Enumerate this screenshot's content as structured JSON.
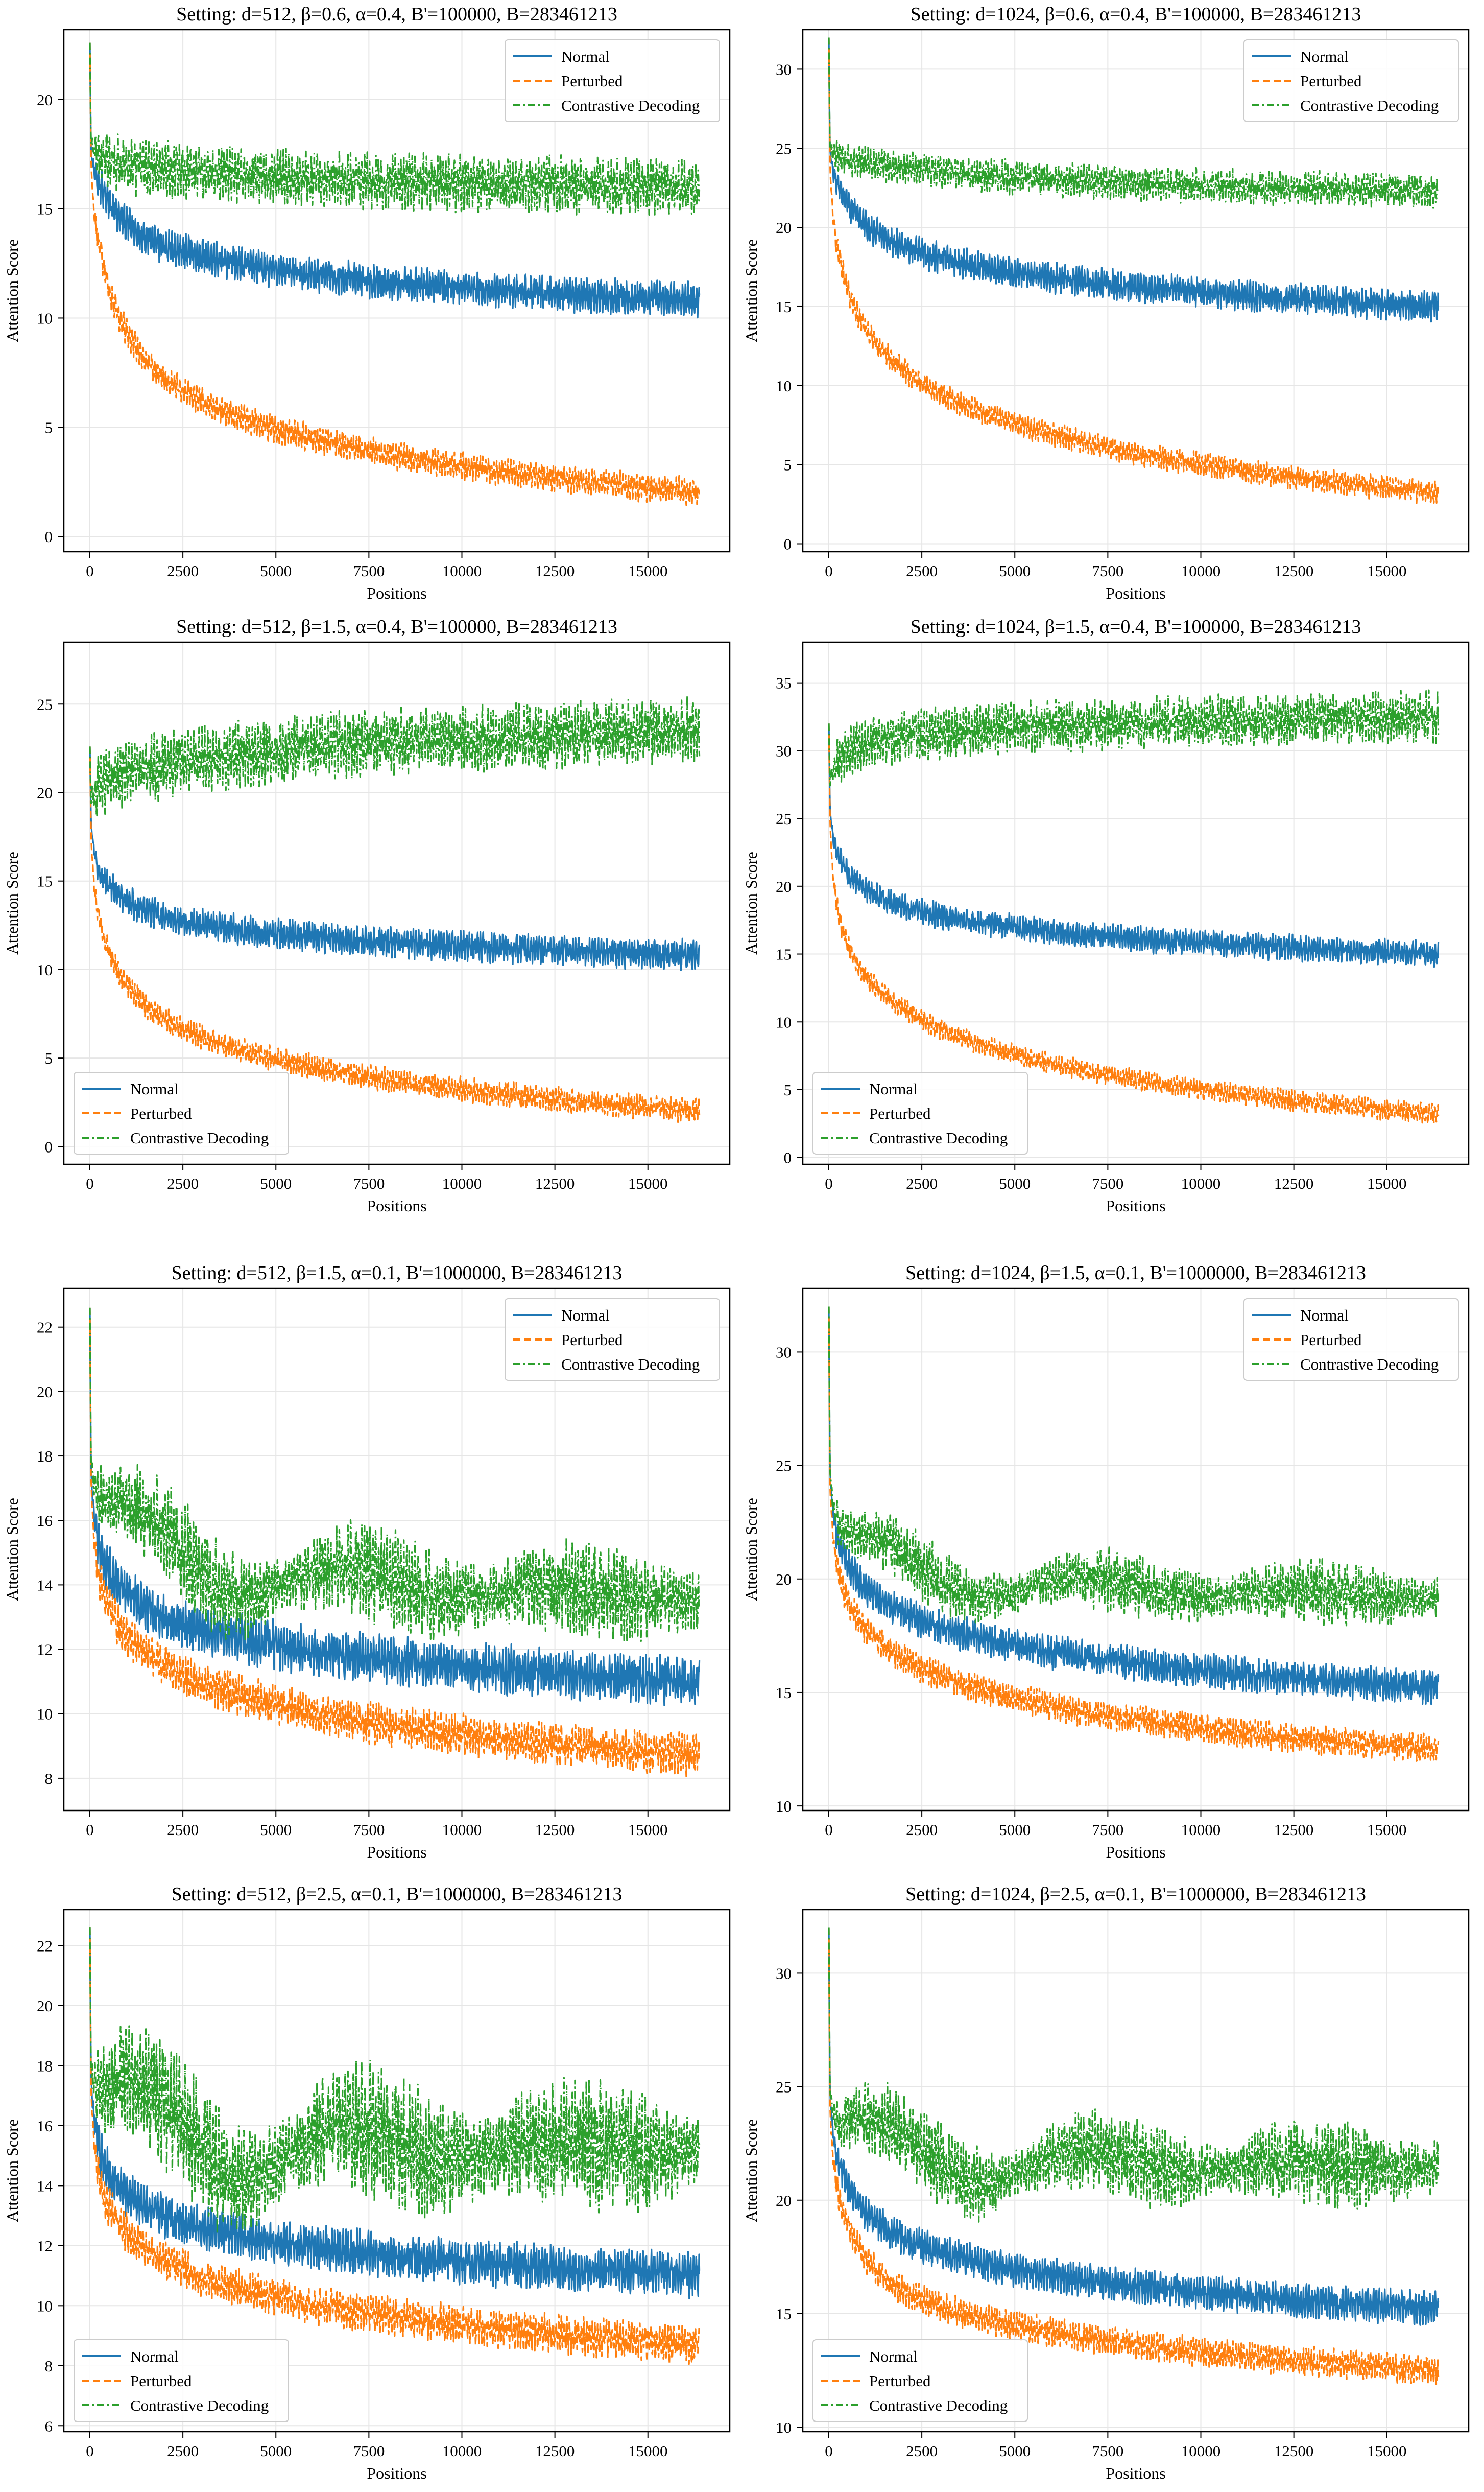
{
  "figure": {
    "description_free": true
  },
  "styles": {
    "colors": {
      "normal": "#1f77b4",
      "perturbed": "#ff7f0e",
      "contrastive": "#2ca02c",
      "grid": "#e6e6e6",
      "axis": "#000000"
    }
  },
  "chart_data": [
    {
      "type": "line",
      "title": "Setting: d=512, β=0.6, α=0.4, B'=100000, B=283461213",
      "xlabel": "Positions",
      "ylabel": "Attention Score",
      "xlim": [
        -700,
        17200
      ],
      "ylim": [
        -0.7,
        23.2
      ],
      "xticks": [
        0,
        2500,
        5000,
        7500,
        10000,
        12500,
        15000
      ],
      "yticks": [
        0,
        5,
        10,
        15,
        20
      ],
      "legend": "top-right",
      "grid": true,
      "series": [
        {
          "name": "Normal",
          "style": "solid",
          "start": 22.6,
          "p0": 17.8,
          "p300": 16.0,
          "p2000": 13.3,
          "end": 10.8,
          "amp": 1.5,
          "trend": "decay",
          "max_x": 16384
        },
        {
          "name": "Perturbed",
          "style": "dashed",
          "start": 22.6,
          "p0": 17.5,
          "p300": 13.0,
          "p2000": 7.2,
          "end": 2.0,
          "amp": 1.2,
          "trend": "decay",
          "max_x": 16384
        },
        {
          "name": "Contrastive Decoding",
          "style": "dashdot",
          "start": 22.6,
          "p0": 18.0,
          "p300": 17.4,
          "p2000": 16.8,
          "end": 16.0,
          "amp": 2.4,
          "trend": "flat",
          "max_x": 16384
        }
      ]
    },
    {
      "type": "line",
      "title": "Setting: d=1024, β=0.6, α=0.4, B'=100000, B=283461213",
      "xlabel": "Positions",
      "ylabel": "Attention Score",
      "xlim": [
        -700,
        17200
      ],
      "ylim": [
        -0.5,
        32.5
      ],
      "xticks": [
        0,
        2500,
        5000,
        7500,
        10000,
        12500,
        15000
      ],
      "yticks": [
        0,
        5,
        10,
        15,
        20,
        25,
        30
      ],
      "legend": "top-right",
      "grid": true,
      "series": [
        {
          "name": "Normal",
          "style": "solid",
          "start": 32.0,
          "p0": 25.0,
          "p300": 22.5,
          "p2000": 18.8,
          "end": 15.0,
          "amp": 1.8,
          "trend": "decay",
          "max_x": 16384
        },
        {
          "name": "Perturbed",
          "style": "dashed",
          "start": 32.0,
          "p0": 24.5,
          "p300": 18.0,
          "p2000": 11.0,
          "end": 3.2,
          "amp": 1.4,
          "trend": "decay",
          "max_x": 16384
        },
        {
          "name": "Contrastive Decoding",
          "style": "dashdot",
          "start": 32.0,
          "p0": 25.2,
          "p300": 24.5,
          "p2000": 23.8,
          "end": 22.3,
          "amp": 2.0,
          "trend": "flat",
          "max_x": 16384
        }
      ]
    },
    {
      "type": "line",
      "title": "Setting: d=512, β=1.5, α=0.4, B'=100000, B=283461213",
      "xlabel": "Positions",
      "ylabel": "Attention Score",
      "xlim": [
        -700,
        17200
      ],
      "ylim": [
        -1.0,
        28.5
      ],
      "xticks": [
        0,
        2500,
        5000,
        7500,
        10000,
        12500,
        15000
      ],
      "yticks": [
        0,
        5,
        10,
        15,
        20,
        25
      ],
      "legend": "bottom-left",
      "grid": true,
      "series": [
        {
          "name": "Normal",
          "style": "solid",
          "start": 22.6,
          "p0": 18.5,
          "p300": 15.5,
          "p2000": 13.0,
          "end": 10.8,
          "amp": 1.6,
          "trend": "decay",
          "max_x": 16384
        },
        {
          "name": "Perturbed",
          "style": "dashed",
          "start": 22.6,
          "p0": 18.0,
          "p300": 12.5,
          "p2000": 7.2,
          "end": 2.0,
          "amp": 1.3,
          "trend": "decay",
          "max_x": 16384
        },
        {
          "name": "Contrastive Decoding",
          "style": "dashdot",
          "start": 22.6,
          "p0": 19.5,
          "p300": 20.5,
          "p2000": 21.5,
          "end": 23.5,
          "amp": 3.5,
          "trend": "rise",
          "max_x": 16384
        }
      ]
    },
    {
      "type": "line",
      "title": "Setting: d=1024, β=1.5, α=0.4, B'=100000, B=283461213",
      "xlabel": "Positions",
      "ylabel": "Attention Score",
      "xlim": [
        -700,
        17200
      ],
      "ylim": [
        -0.5,
        38.0
      ],
      "xticks": [
        0,
        2500,
        5000,
        7500,
        10000,
        12500,
        15000
      ],
      "yticks": [
        0,
        5,
        10,
        15,
        20,
        25,
        30,
        35
      ],
      "legend": "bottom-left",
      "grid": true,
      "series": [
        {
          "name": "Normal",
          "style": "solid",
          "start": 32.0,
          "p0": 26.0,
          "p300": 22.0,
          "p2000": 18.5,
          "end": 15.0,
          "amp": 1.8,
          "trend": "decay",
          "max_x": 16384
        },
        {
          "name": "Perturbed",
          "style": "dashed",
          "start": 32.0,
          "p0": 25.5,
          "p300": 17.5,
          "p2000": 11.0,
          "end": 3.2,
          "amp": 1.4,
          "trend": "decay",
          "max_x": 16384
        },
        {
          "name": "Contrastive Decoding",
          "style": "dashdot",
          "start": 32.0,
          "p0": 27.5,
          "p300": 29.5,
          "p2000": 31.0,
          "end": 32.5,
          "amp": 3.5,
          "trend": "rise",
          "max_x": 16384
        }
      ]
    },
    {
      "type": "line",
      "title": "Setting: d=512, β=1.5, α=0.1, B'=1000000, B=283461213",
      "xlabel": "Positions",
      "ylabel": "Attention Score",
      "xlim": [
        -700,
        17200
      ],
      "ylim": [
        7.0,
        23.2
      ],
      "xticks": [
        0,
        2500,
        5000,
        7500,
        10000,
        12500,
        15000
      ],
      "yticks": [
        8,
        10,
        12,
        14,
        16,
        18,
        20,
        22
      ],
      "legend": "top-right",
      "grid": true,
      "series": [
        {
          "name": "Normal",
          "style": "solid",
          "start": 22.6,
          "p0": 17.8,
          "p300": 15.0,
          "p2000": 13.0,
          "end": 11.0,
          "amp": 1.4,
          "trend": "decay",
          "max_x": 16384
        },
        {
          "name": "Perturbed",
          "style": "dashed",
          "start": 22.6,
          "p0": 17.5,
          "p300": 14.0,
          "p2000": 11.5,
          "end": 8.7,
          "amp": 1.2,
          "trend": "decay",
          "max_x": 16384
        },
        {
          "name": "Contrastive Decoding",
          "style": "dashdot",
          "start": 22.6,
          "p0": 18.0,
          "p300": 16.2,
          "p2000": 14.8,
          "end": 13.6,
          "amp": 2.6,
          "trend": "wave",
          "max_x": 16384
        }
      ]
    },
    {
      "type": "line",
      "title": "Setting: d=1024, β=1.5, α=0.1, B'=1000000, B=283461213",
      "xlabel": "Positions",
      "ylabel": "Attention Score",
      "xlim": [
        -700,
        17200
      ],
      "ylim": [
        9.8,
        32.8
      ],
      "xticks": [
        0,
        2500,
        5000,
        7500,
        10000,
        12500,
        15000
      ],
      "yticks": [
        10,
        15,
        20,
        25,
        30
      ],
      "legend": "top-right",
      "grid": true,
      "series": [
        {
          "name": "Normal",
          "style": "solid",
          "start": 32.0,
          "p0": 25.0,
          "p300": 21.5,
          "p2000": 18.5,
          "end": 15.2,
          "amp": 1.4,
          "trend": "decay",
          "max_x": 16384
        },
        {
          "name": "Perturbed",
          "style": "dashed",
          "start": 32.0,
          "p0": 24.5,
          "p300": 20.0,
          "p2000": 16.5,
          "end": 12.5,
          "amp": 1.2,
          "trend": "decay",
          "max_x": 16384
        },
        {
          "name": "Contrastive Decoding",
          "style": "dashdot",
          "start": 32.0,
          "p0": 25.0,
          "p300": 21.8,
          "p2000": 20.3,
          "end": 19.2,
          "amp": 2.4,
          "trend": "wave",
          "max_x": 16384
        }
      ]
    },
    {
      "type": "line",
      "title": "Setting: d=512, β=2.5, α=0.1, B'=1000000, B=283461213",
      "xlabel": "Positions",
      "ylabel": "Attention Score",
      "xlim": [
        -700,
        17200
      ],
      "ylim": [
        5.8,
        23.2
      ],
      "xticks": [
        0,
        2500,
        5000,
        7500,
        10000,
        12500,
        15000
      ],
      "yticks": [
        6,
        8,
        10,
        12,
        14,
        16,
        18,
        20,
        22
      ],
      "legend": "bottom-left",
      "grid": true,
      "series": [
        {
          "name": "Normal",
          "style": "solid",
          "start": 22.6,
          "p0": 17.8,
          "p300": 15.0,
          "p2000": 13.0,
          "end": 11.0,
          "amp": 1.4,
          "trend": "decay",
          "max_x": 16384
        },
        {
          "name": "Perturbed",
          "style": "dashed",
          "start": 22.6,
          "p0": 17.5,
          "p300": 14.0,
          "p2000": 11.5,
          "end": 8.7,
          "amp": 1.2,
          "trend": "decay",
          "max_x": 16384
        },
        {
          "name": "Contrastive Decoding",
          "style": "dashdot",
          "start": 22.6,
          "p0": 18.0,
          "p300": 16.5,
          "p2000": 15.5,
          "end": 15.2,
          "amp": 3.8,
          "trend": "wave",
          "max_x": 16384
        }
      ]
    },
    {
      "type": "line",
      "title": "Setting: d=1024, β=2.5, α=0.1, B'=1000000, B=283461213",
      "xlabel": "Positions",
      "ylabel": "Attention Score",
      "xlim": [
        -700,
        17200
      ],
      "ylim": [
        9.8,
        32.8
      ],
      "xticks": [
        0,
        2500,
        5000,
        7500,
        10000,
        12500,
        15000
      ],
      "yticks": [
        10,
        15,
        20,
        25,
        30
      ],
      "legend": "bottom-left",
      "grid": true,
      "series": [
        {
          "name": "Normal",
          "style": "solid",
          "start": 32.0,
          "p0": 25.0,
          "p300": 21.5,
          "p2000": 18.3,
          "end": 15.2,
          "amp": 1.4,
          "trend": "decay",
          "max_x": 16384
        },
        {
          "name": "Perturbed",
          "style": "dashed",
          "start": 32.0,
          "p0": 24.5,
          "p300": 20.0,
          "p2000": 16.0,
          "end": 12.5,
          "amp": 1.2,
          "trend": "decay",
          "max_x": 16384
        },
        {
          "name": "Contrastive Decoding",
          "style": "dashdot",
          "start": 32.0,
          "p0": 25.0,
          "p300": 22.8,
          "p2000": 21.8,
          "end": 21.5,
          "amp": 3.2,
          "trend": "wave",
          "max_x": 16384
        }
      ]
    }
  ]
}
